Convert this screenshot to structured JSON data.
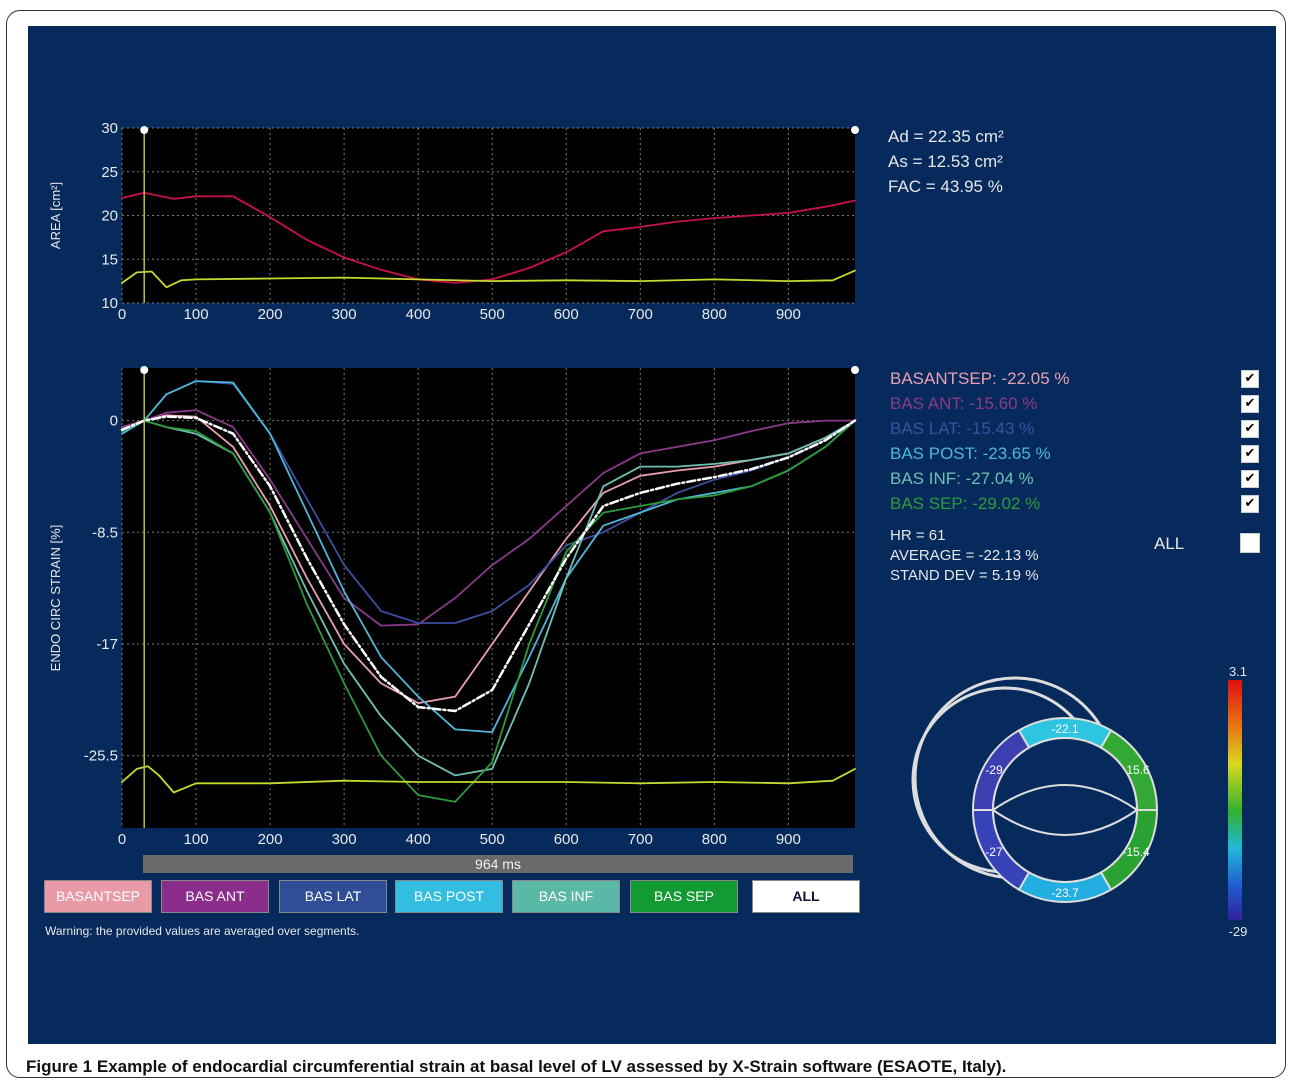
{
  "caption": {
    "label": "Figure 1",
    "text": "Example of endocardial circumferential strain at basal level of LV assessed by X-Strain software (ESAOTE, Italy)."
  },
  "area_info": {
    "ad": "Ad = 22.35 cm²",
    "as": "As = 12.53 cm²",
    "fac": "FAC = 43.95 %"
  },
  "segments": [
    {
      "name": "BASANTSEP",
      "label": "BASANTSEP:  -22.05   %",
      "button": "BASANTSEP",
      "color": "#e8a0b0",
      "btn_bg": "#e89aa6",
      "checked": true
    },
    {
      "name": "BAS ANT",
      "label": "BAS ANT:  -15.60   %",
      "button": "BAS ANT",
      "color": "#8a3a8a",
      "btn_bg": "#8b2d8b",
      "checked": true
    },
    {
      "name": "BAS LAT",
      "label": "BAS LAT:  -15.43   %",
      "button": "BAS LAT",
      "color": "#3e4fa0",
      "btn_bg": "#2f4e96",
      "checked": true
    },
    {
      "name": "BAS POST",
      "label": "BAS POST:  -23.65   %",
      "button": "BAS POST",
      "color": "#4fb6d8",
      "btn_bg": "#33bde0",
      "checked": true
    },
    {
      "name": "BAS INF",
      "label": "BAS INF:  -27.04   %",
      "button": "BAS INF",
      "color": "#6fc0b4",
      "btn_bg": "#5ab8a6",
      "checked": true
    },
    {
      "name": "BAS SEP",
      "label": "BAS SEP:  -29.02   %",
      "button": "BAS SEP",
      "color": "#2e9a3a",
      "btn_bg": "#139b33",
      "checked": true
    }
  ],
  "stats": {
    "hr": "HR = 61",
    "average": "AVERAGE = -22.13 %",
    "std": "STAND DEV = 5.19 %"
  },
  "all_label": "ALL",
  "all_button": "ALL",
  "duration": "964 ms",
  "warning": "Warning: the provided values are averaged over segments.",
  "bullseye": {
    "values": [
      "-22.1",
      "-15.6",
      "-15.4",
      "-23.7",
      "-27",
      "-29"
    ],
    "scale_max": "3.1",
    "scale_min": "-29"
  },
  "chart_data": [
    {
      "type": "line",
      "ylabel": "AREA [cm²]",
      "xlim": [
        0,
        990
      ],
      "ylim": [
        10,
        30
      ],
      "xticks": [
        "0",
        "100",
        "200",
        "300",
        "400",
        "500",
        "600",
        "700",
        "800",
        "900"
      ],
      "yticks": [
        "10",
        "15",
        "20",
        "25",
        "30"
      ],
      "series": [
        {
          "color": "#c8104a",
          "x": [
            0,
            30,
            70,
            100,
            150,
            200,
            250,
            300,
            350,
            400,
            450,
            500,
            550,
            600,
            650,
            700,
            750,
            800,
            850,
            900,
            950,
            990
          ],
          "y": [
            22,
            22.6,
            21.9,
            22.2,
            22.2,
            19.8,
            17.2,
            15.2,
            13.8,
            12.7,
            12.3,
            12.7,
            14,
            15.8,
            18.2,
            18.7,
            19.3,
            19.7,
            20,
            20.3,
            21,
            21.7
          ]
        },
        {
          "color": "#c8d830",
          "x": [
            0,
            20,
            40,
            60,
            80,
            100,
            200,
            300,
            400,
            500,
            600,
            700,
            800,
            900,
            960,
            990
          ],
          "y": [
            12.3,
            13.5,
            13.6,
            11.8,
            12.6,
            12.7,
            12.8,
            12.9,
            12.7,
            12.5,
            12.6,
            12.5,
            12.7,
            12.5,
            12.6,
            13.7
          ]
        }
      ]
    },
    {
      "type": "line",
      "ylabel": "ENDO CIRC STRAIN [%]",
      "xlim": [
        0,
        990
      ],
      "ylim": [
        -31,
        4
      ],
      "xticks": [
        "0",
        "100",
        "200",
        "300",
        "400",
        "500",
        "600",
        "700",
        "800",
        "900"
      ],
      "yticks": [
        "0",
        "-8.5",
        "-17",
        "-25.5"
      ],
      "series": [
        {
          "name": "BASANTSEP",
          "color": "#e8a0b0",
          "x": [
            0,
            30,
            60,
            100,
            150,
            200,
            250,
            300,
            350,
            400,
            450,
            500,
            550,
            600,
            650,
            700,
            750,
            800,
            850,
            900,
            950,
            990
          ],
          "y": [
            -0.5,
            0,
            0.4,
            0.3,
            -2,
            -6.5,
            -12,
            -17,
            -20,
            -21.5,
            -21,
            -17,
            -13,
            -9,
            -5.5,
            -4.2,
            -3.8,
            -3.5,
            -3,
            -2.5,
            -1.3,
            0
          ]
        },
        {
          "name": "BAS ANT",
          "color": "#8a3a8a",
          "x": [
            0,
            30,
            60,
            100,
            150,
            200,
            250,
            300,
            350,
            400,
            450,
            500,
            550,
            600,
            650,
            700,
            750,
            800,
            850,
            900,
            950,
            990
          ],
          "y": [
            -0.5,
            0,
            0.6,
            0.8,
            -0.5,
            -4.5,
            -9,
            -13.5,
            -15.6,
            -15.5,
            -13.5,
            -11,
            -9,
            -6.5,
            -4,
            -2.5,
            -2,
            -1.5,
            -0.8,
            -0.2,
            0,
            0
          ]
        },
        {
          "name": "BAS LAT",
          "color": "#3e4fa0",
          "x": [
            0,
            30,
            60,
            100,
            150,
            200,
            250,
            300,
            350,
            400,
            450,
            500,
            550,
            600,
            650,
            700,
            750,
            800,
            850,
            900,
            950,
            990
          ],
          "y": [
            -1,
            0,
            2,
            3,
            2.8,
            -1,
            -6,
            -11,
            -14.5,
            -15.4,
            -15.4,
            -14.5,
            -12.5,
            -9.5,
            -8.5,
            -7,
            -5.5,
            -4.5,
            -3.8,
            -2.8,
            -1.5,
            0
          ]
        },
        {
          "name": "BAS POST",
          "color": "#4fb6d8",
          "x": [
            0,
            30,
            60,
            100,
            150,
            200,
            250,
            300,
            350,
            400,
            450,
            500,
            550,
            600,
            650,
            700,
            750,
            800,
            850,
            900,
            950,
            990
          ],
          "y": [
            -1,
            0,
            2,
            3,
            2.9,
            -1,
            -7,
            -13,
            -18,
            -21,
            -23.5,
            -23.7,
            -18,
            -12,
            -8,
            -7,
            -6,
            -5.5,
            -5,
            -3.8,
            -2,
            0
          ]
        },
        {
          "name": "BAS INF",
          "color": "#6fc0b4",
          "x": [
            0,
            30,
            60,
            100,
            150,
            200,
            250,
            300,
            350,
            400,
            450,
            500,
            550,
            600,
            650,
            700,
            750,
            800,
            850,
            900,
            950,
            990
          ],
          "y": [
            -0.8,
            0,
            -0.5,
            -1,
            -2.5,
            -7,
            -13,
            -18.5,
            -22.5,
            -25.5,
            -27,
            -26.5,
            -20,
            -12,
            -5,
            -3.5,
            -3.5,
            -3.3,
            -3,
            -2.5,
            -1.3,
            0
          ]
        },
        {
          "name": "BAS SEP",
          "color": "#2e9a3a",
          "x": [
            0,
            30,
            60,
            100,
            150,
            200,
            250,
            300,
            350,
            400,
            450,
            500,
            550,
            600,
            650,
            700,
            750,
            800,
            850,
            900,
            950,
            990
          ],
          "y": [
            -0.8,
            0,
            -0.5,
            -0.8,
            -2.5,
            -7,
            -14,
            -20,
            -25.5,
            -28.5,
            -29,
            -26,
            -17,
            -10,
            -7,
            -6.5,
            -6,
            -5.7,
            -5,
            -3.8,
            -2,
            0
          ]
        },
        {
          "name": "Average",
          "color": "#ffffff",
          "dashed": true,
          "x": [
            0,
            30,
            60,
            100,
            150,
            200,
            250,
            300,
            350,
            400,
            450,
            500,
            550,
            600,
            650,
            700,
            750,
            800,
            850,
            900,
            950,
            990
          ],
          "y": [
            -0.7,
            0,
            0.3,
            0.2,
            -1,
            -5,
            -10.5,
            -15.5,
            -19.5,
            -21.8,
            -22.1,
            -20.5,
            -15.5,
            -10.5,
            -6.5,
            -5.5,
            -4.8,
            -4.3,
            -3.7,
            -2.8,
            -1.5,
            0
          ]
        },
        {
          "name": "ECG",
          "color": "#c8d830",
          "x": [
            0,
            20,
            35,
            50,
            70,
            100,
            200,
            300,
            400,
            500,
            600,
            700,
            800,
            900,
            960,
            990
          ],
          "y": [
            -27.5,
            -26.5,
            -26.3,
            -27,
            -28.3,
            -27.6,
            -27.6,
            -27.4,
            -27.5,
            -27.5,
            -27.5,
            -27.6,
            -27.5,
            -27.6,
            -27.4,
            -26.5
          ]
        }
      ]
    }
  ]
}
